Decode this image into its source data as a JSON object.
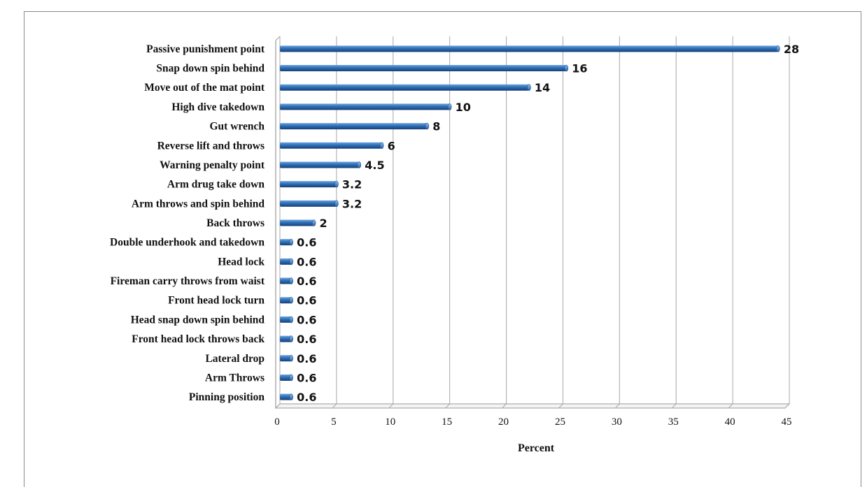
{
  "chart_data": {
    "type": "bar",
    "orientation": "horizontal",
    "categories": [
      "Passive punishment point",
      "Snap down spin behind",
      "Move out of the mat point",
      "High dive takedown",
      "Gut wrench",
      "Reverse lift and throws",
      "Warning penalty point",
      "Arm drug take down",
      "Arm throws and spin behind",
      "Back throws",
      "Double underhook and takedown",
      "Head lock",
      "Fireman carry throws from waist",
      "Front head lock turn",
      "Head snap down spin behind",
      "Front head lock throws back",
      "Lateral drop",
      "Arm Throws",
      "Pinning position"
    ],
    "values": [
      44,
      25.3,
      22,
      15,
      13,
      9,
      7,
      5,
      5,
      3,
      1,
      1,
      1,
      1,
      1,
      1,
      1,
      1,
      1
    ],
    "data_labels": [
      "28",
      "16",
      "14",
      "10",
      "8",
      "6",
      "4.5",
      "3.2",
      "3.2",
      "2",
      "0.6",
      "0.6",
      "0.6",
      "0.6",
      "0.6",
      "0.6",
      "0.6",
      "0.6",
      "0.6"
    ],
    "xlabel": "Percent",
    "ylabel": "",
    "title": "",
    "xlim": [
      0,
      45
    ],
    "xticks": [
      "0",
      "5",
      "10",
      "15",
      "20",
      "25",
      "30",
      "35",
      "40",
      "45"
    ],
    "grid": true,
    "bar_color": "#2f6fb5"
  }
}
